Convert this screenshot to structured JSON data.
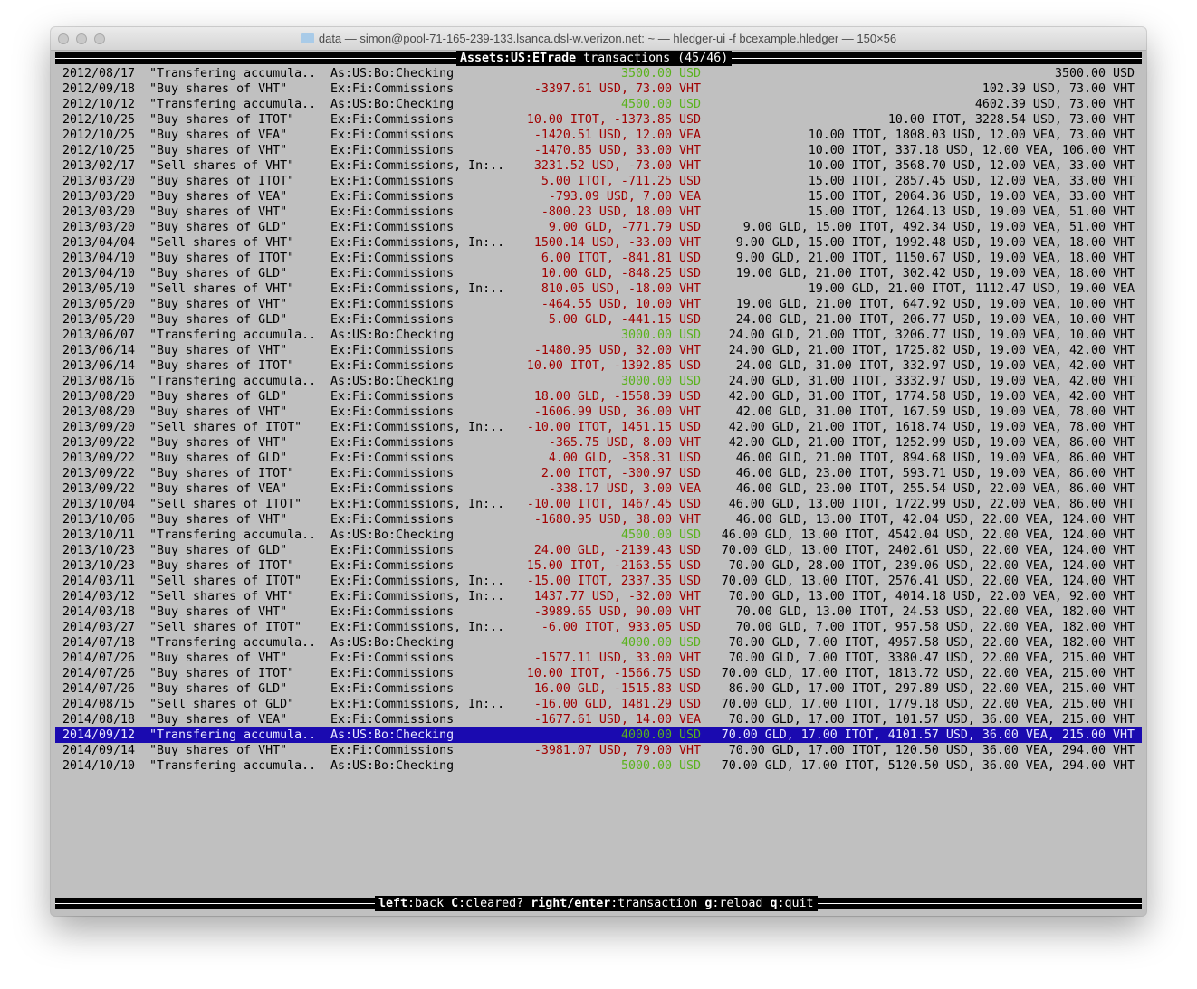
{
  "window": {
    "title": "data — simon@pool-71-165-239-133.lsanca.dsl-w.verizon.net: ~ — hledger-ui -f bcexample.hledger — 150×56"
  },
  "header": {
    "account": "Assets:US:ETrade",
    "rest": " transactions (45/46)"
  },
  "footer": {
    "keys": [
      {
        "key": "left",
        "action": "back"
      },
      {
        "key": "C",
        "action": "cleared?"
      },
      {
        "key": "right/enter",
        "action": "transaction"
      },
      {
        "key": "g",
        "action": "reload"
      },
      {
        "key": "q",
        "action": "quit"
      }
    ]
  },
  "colors": {
    "negative": "#a00000",
    "positive": "#5ab21c",
    "selection": "#1a0ab0",
    "background": "#c0c0c0"
  },
  "selected_index": 43,
  "rows": [
    [
      "2012/08/17",
      "\"Transfering accumula..",
      "As:US:Bo:Checking",
      "3500.00 USD",
      "3500.00 USD",
      "pos"
    ],
    [
      "2012/09/18",
      "\"Buy shares of VHT\"",
      "Ex:Fi:Commissions",
      "-3397.61 USD, 73.00 VHT",
      "102.39 USD, 73.00 VHT",
      "neg"
    ],
    [
      "2012/10/12",
      "\"Transfering accumula..",
      "As:US:Bo:Checking",
      "4500.00 USD",
      "4602.39 USD, 73.00 VHT",
      "pos"
    ],
    [
      "2012/10/25",
      "\"Buy shares of ITOT\"",
      "Ex:Fi:Commissions",
      "10.00 ITOT, -1373.85 USD",
      "10.00 ITOT, 3228.54 USD, 73.00 VHT",
      "neg"
    ],
    [
      "2012/10/25",
      "\"Buy shares of VEA\"",
      "Ex:Fi:Commissions",
      "-1420.51 USD, 12.00 VEA",
      "10.00 ITOT, 1808.03 USD, 12.00 VEA, 73.00 VHT",
      "neg"
    ],
    [
      "2012/10/25",
      "\"Buy shares of VHT\"",
      "Ex:Fi:Commissions",
      "-1470.85 USD, 33.00 VHT",
      "10.00 ITOT, 337.18 USD, 12.00 VEA, 106.00 VHT",
      "neg"
    ],
    [
      "2013/02/17",
      "\"Sell shares of VHT\"",
      "Ex:Fi:Commissions, In:..",
      "3231.52 USD, -73.00 VHT",
      "10.00 ITOT, 3568.70 USD, 12.00 VEA, 33.00 VHT",
      "neg"
    ],
    [
      "2013/03/20",
      "\"Buy shares of ITOT\"",
      "Ex:Fi:Commissions",
      "5.00 ITOT, -711.25 USD",
      "15.00 ITOT, 2857.45 USD, 12.00 VEA, 33.00 VHT",
      "neg"
    ],
    [
      "2013/03/20",
      "\"Buy shares of VEA\"",
      "Ex:Fi:Commissions",
      "-793.09 USD, 7.00 VEA",
      "15.00 ITOT, 2064.36 USD, 19.00 VEA, 33.00 VHT",
      "neg"
    ],
    [
      "2013/03/20",
      "\"Buy shares of VHT\"",
      "Ex:Fi:Commissions",
      "-800.23 USD, 18.00 VHT",
      "15.00 ITOT, 1264.13 USD, 19.00 VEA, 51.00 VHT",
      "neg"
    ],
    [
      "2013/03/20",
      "\"Buy shares of GLD\"",
      "Ex:Fi:Commissions",
      "9.00 GLD, -771.79 USD",
      "9.00 GLD, 15.00 ITOT, 492.34 USD, 19.00 VEA, 51.00 VHT",
      "neg"
    ],
    [
      "2013/04/04",
      "\"Sell shares of VHT\"",
      "Ex:Fi:Commissions, In:..",
      "1500.14 USD, -33.00 VHT",
      "9.00 GLD, 15.00 ITOT, 1992.48 USD, 19.00 VEA, 18.00 VHT",
      "neg"
    ],
    [
      "2013/04/10",
      "\"Buy shares of ITOT\"",
      "Ex:Fi:Commissions",
      "6.00 ITOT, -841.81 USD",
      "9.00 GLD, 21.00 ITOT, 1150.67 USD, 19.00 VEA, 18.00 VHT",
      "neg"
    ],
    [
      "2013/04/10",
      "\"Buy shares of GLD\"",
      "Ex:Fi:Commissions",
      "10.00 GLD, -848.25 USD",
      "19.00 GLD, 21.00 ITOT, 302.42 USD, 19.00 VEA, 18.00 VHT",
      "neg"
    ],
    [
      "2013/05/10",
      "\"Sell shares of VHT\"",
      "Ex:Fi:Commissions, In:..",
      "810.05 USD, -18.00 VHT",
      "19.00 GLD, 21.00 ITOT, 1112.47 USD, 19.00 VEA",
      "neg"
    ],
    [
      "2013/05/20",
      "\"Buy shares of VHT\"",
      "Ex:Fi:Commissions",
      "-464.55 USD, 10.00 VHT",
      "19.00 GLD, 21.00 ITOT, 647.92 USD, 19.00 VEA, 10.00 VHT",
      "neg"
    ],
    [
      "2013/05/20",
      "\"Buy shares of GLD\"",
      "Ex:Fi:Commissions",
      "5.00 GLD, -441.15 USD",
      "24.00 GLD, 21.00 ITOT, 206.77 USD, 19.00 VEA, 10.00 VHT",
      "neg"
    ],
    [
      "2013/06/07",
      "\"Transfering accumula..",
      "As:US:Bo:Checking",
      "3000.00 USD",
      "24.00 GLD, 21.00 ITOT, 3206.77 USD, 19.00 VEA, 10.00 VHT",
      "pos"
    ],
    [
      "2013/06/14",
      "\"Buy shares of VHT\"",
      "Ex:Fi:Commissions",
      "-1480.95 USD, 32.00 VHT",
      "24.00 GLD, 21.00 ITOT, 1725.82 USD, 19.00 VEA, 42.00 VHT",
      "neg"
    ],
    [
      "2013/06/14",
      "\"Buy shares of ITOT\"",
      "Ex:Fi:Commissions",
      "10.00 ITOT, -1392.85 USD",
      "24.00 GLD, 31.00 ITOT, 332.97 USD, 19.00 VEA, 42.00 VHT",
      "neg"
    ],
    [
      "2013/08/16",
      "\"Transfering accumula..",
      "As:US:Bo:Checking",
      "3000.00 USD",
      "24.00 GLD, 31.00 ITOT, 3332.97 USD, 19.00 VEA, 42.00 VHT",
      "pos"
    ],
    [
      "2013/08/20",
      "\"Buy shares of GLD\"",
      "Ex:Fi:Commissions",
      "18.00 GLD, -1558.39 USD",
      "42.00 GLD, 31.00 ITOT, 1774.58 USD, 19.00 VEA, 42.00 VHT",
      "neg"
    ],
    [
      "2013/08/20",
      "\"Buy shares of VHT\"",
      "Ex:Fi:Commissions",
      "-1606.99 USD, 36.00 VHT",
      "42.00 GLD, 31.00 ITOT, 167.59 USD, 19.00 VEA, 78.00 VHT",
      "neg"
    ],
    [
      "2013/09/20",
      "\"Sell shares of ITOT\"",
      "Ex:Fi:Commissions, In:..",
      "-10.00 ITOT, 1451.15 USD",
      "42.00 GLD, 21.00 ITOT, 1618.74 USD, 19.00 VEA, 78.00 VHT",
      "neg"
    ],
    [
      "2013/09/22",
      "\"Buy shares of VHT\"",
      "Ex:Fi:Commissions",
      "-365.75 USD, 8.00 VHT",
      "42.00 GLD, 21.00 ITOT, 1252.99 USD, 19.00 VEA, 86.00 VHT",
      "neg"
    ],
    [
      "2013/09/22",
      "\"Buy shares of GLD\"",
      "Ex:Fi:Commissions",
      "4.00 GLD, -358.31 USD",
      "46.00 GLD, 21.00 ITOT, 894.68 USD, 19.00 VEA, 86.00 VHT",
      "neg"
    ],
    [
      "2013/09/22",
      "\"Buy shares of ITOT\"",
      "Ex:Fi:Commissions",
      "2.00 ITOT, -300.97 USD",
      "46.00 GLD, 23.00 ITOT, 593.71 USD, 19.00 VEA, 86.00 VHT",
      "neg"
    ],
    [
      "2013/09/22",
      "\"Buy shares of VEA\"",
      "Ex:Fi:Commissions",
      "-338.17 USD, 3.00 VEA",
      "46.00 GLD, 23.00 ITOT, 255.54 USD, 22.00 VEA, 86.00 VHT",
      "neg"
    ],
    [
      "2013/10/04",
      "\"Sell shares of ITOT\"",
      "Ex:Fi:Commissions, In:..",
      "-10.00 ITOT, 1467.45 USD",
      "46.00 GLD, 13.00 ITOT, 1722.99 USD, 22.00 VEA, 86.00 VHT",
      "neg"
    ],
    [
      "2013/10/06",
      "\"Buy shares of VHT\"",
      "Ex:Fi:Commissions",
      "-1680.95 USD, 38.00 VHT",
      "46.00 GLD, 13.00 ITOT, 42.04 USD, 22.00 VEA, 124.00 VHT",
      "neg"
    ],
    [
      "2013/10/11",
      "\"Transfering accumula..",
      "As:US:Bo:Checking",
      "4500.00 USD",
      "46.00 GLD, 13.00 ITOT, 4542.04 USD, 22.00 VEA, 124.00 VHT",
      "pos"
    ],
    [
      "2013/10/23",
      "\"Buy shares of GLD\"",
      "Ex:Fi:Commissions",
      "24.00 GLD, -2139.43 USD",
      "70.00 GLD, 13.00 ITOT, 2402.61 USD, 22.00 VEA, 124.00 VHT",
      "neg"
    ],
    [
      "2013/10/23",
      "\"Buy shares of ITOT\"",
      "Ex:Fi:Commissions",
      "15.00 ITOT, -2163.55 USD",
      "70.00 GLD, 28.00 ITOT, 239.06 USD, 22.00 VEA, 124.00 VHT",
      "neg"
    ],
    [
      "2014/03/11",
      "\"Sell shares of ITOT\"",
      "Ex:Fi:Commissions, In:..",
      "-15.00 ITOT, 2337.35 USD",
      "70.00 GLD, 13.00 ITOT, 2576.41 USD, 22.00 VEA, 124.00 VHT",
      "neg"
    ],
    [
      "2014/03/12",
      "\"Sell shares of VHT\"",
      "Ex:Fi:Commissions, In:..",
      "1437.77 USD, -32.00 VHT",
      "70.00 GLD, 13.00 ITOT, 4014.18 USD, 22.00 VEA, 92.00 VHT",
      "neg"
    ],
    [
      "2014/03/18",
      "\"Buy shares of VHT\"",
      "Ex:Fi:Commissions",
      "-3989.65 USD, 90.00 VHT",
      "70.00 GLD, 13.00 ITOT, 24.53 USD, 22.00 VEA, 182.00 VHT",
      "neg"
    ],
    [
      "2014/03/27",
      "\"Sell shares of ITOT\"",
      "Ex:Fi:Commissions, In:..",
      "-6.00 ITOT, 933.05 USD",
      "70.00 GLD, 7.00 ITOT, 957.58 USD, 22.00 VEA, 182.00 VHT",
      "neg"
    ],
    [
      "2014/07/18",
      "\"Transfering accumula..",
      "As:US:Bo:Checking",
      "4000.00 USD",
      "70.00 GLD, 7.00 ITOT, 4957.58 USD, 22.00 VEA, 182.00 VHT",
      "pos"
    ],
    [
      "2014/07/26",
      "\"Buy shares of VHT\"",
      "Ex:Fi:Commissions",
      "-1577.11 USD, 33.00 VHT",
      "70.00 GLD, 7.00 ITOT, 3380.47 USD, 22.00 VEA, 215.00 VHT",
      "neg"
    ],
    [
      "2014/07/26",
      "\"Buy shares of ITOT\"",
      "Ex:Fi:Commissions",
      "10.00 ITOT, -1566.75 USD",
      "70.00 GLD, 17.00 ITOT, 1813.72 USD, 22.00 VEA, 215.00 VHT",
      "neg"
    ],
    [
      "2014/07/26",
      "\"Buy shares of GLD\"",
      "Ex:Fi:Commissions",
      "16.00 GLD, -1515.83 USD",
      "86.00 GLD, 17.00 ITOT, 297.89 USD, 22.00 VEA, 215.00 VHT",
      "neg"
    ],
    [
      "2014/08/15",
      "\"Sell shares of GLD\"",
      "Ex:Fi:Commissions, In:..",
      "-16.00 GLD, 1481.29 USD",
      "70.00 GLD, 17.00 ITOT, 1779.18 USD, 22.00 VEA, 215.00 VHT",
      "neg"
    ],
    [
      "2014/08/18",
      "\"Buy shares of VEA\"",
      "Ex:Fi:Commissions",
      "-1677.61 USD, 14.00 VEA",
      "70.00 GLD, 17.00 ITOT, 101.57 USD, 36.00 VEA, 215.00 VHT",
      "neg"
    ],
    [
      "2014/09/12",
      "\"Transfering accumula..",
      "As:US:Bo:Checking",
      "4000.00 USD",
      "70.00 GLD, 17.00 ITOT, 4101.57 USD, 36.00 VEA, 215.00 VHT",
      "pos"
    ],
    [
      "2014/09/14",
      "\"Buy shares of VHT\"",
      "Ex:Fi:Commissions",
      "-3981.07 USD, 79.00 VHT",
      "70.00 GLD, 17.00 ITOT, 120.50 USD, 36.00 VEA, 294.00 VHT",
      "neg"
    ],
    [
      "2014/10/10",
      "\"Transfering accumula..",
      "As:US:Bo:Checking",
      "5000.00 USD",
      "70.00 GLD, 17.00 ITOT, 5120.50 USD, 36.00 VEA, 294.00 VHT",
      "pos"
    ]
  ]
}
